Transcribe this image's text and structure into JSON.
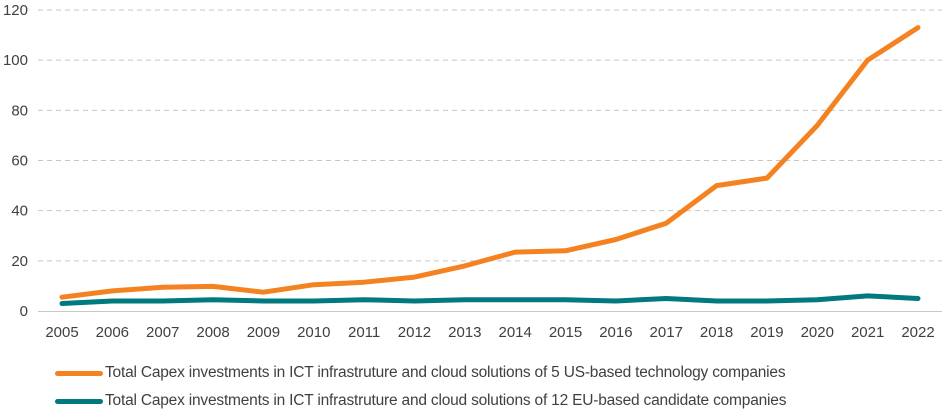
{
  "chart_data": {
    "type": "line",
    "title": "",
    "xlabel": "",
    "ylabel": "",
    "x": [
      "2005",
      "2006",
      "2007",
      "2008",
      "2009",
      "2010",
      "2011",
      "2012",
      "2013",
      "2014",
      "2015",
      "2016",
      "2017",
      "2018",
      "2019",
      "2020",
      "2021",
      "2022"
    ],
    "ylim": [
      0,
      120
    ],
    "yticks": [
      0,
      20,
      40,
      60,
      80,
      100,
      120
    ],
    "grid": "horizontal-dashed",
    "legend_position": "bottom",
    "series": [
      {
        "name": "Total Capex investments in ICT infrastruture and cloud solutions of 5 US-based technology companies",
        "color": "#F58220",
        "values": [
          5.5,
          8,
          9.5,
          9.8,
          7.5,
          10.5,
          11.5,
          13.5,
          18,
          23.5,
          24,
          28.5,
          35,
          50,
          53,
          74,
          100,
          113
        ]
      },
      {
        "name": "Total Capex investments in ICT infrastruture and cloud solutions of 12 EU-based candidate companies",
        "color": "#007A7E",
        "values": [
          3,
          4,
          4,
          4.5,
          4,
          4,
          4.5,
          4,
          4.5,
          4.5,
          4.5,
          4,
          5,
          4,
          4,
          4.5,
          6,
          5
        ]
      }
    ]
  }
}
